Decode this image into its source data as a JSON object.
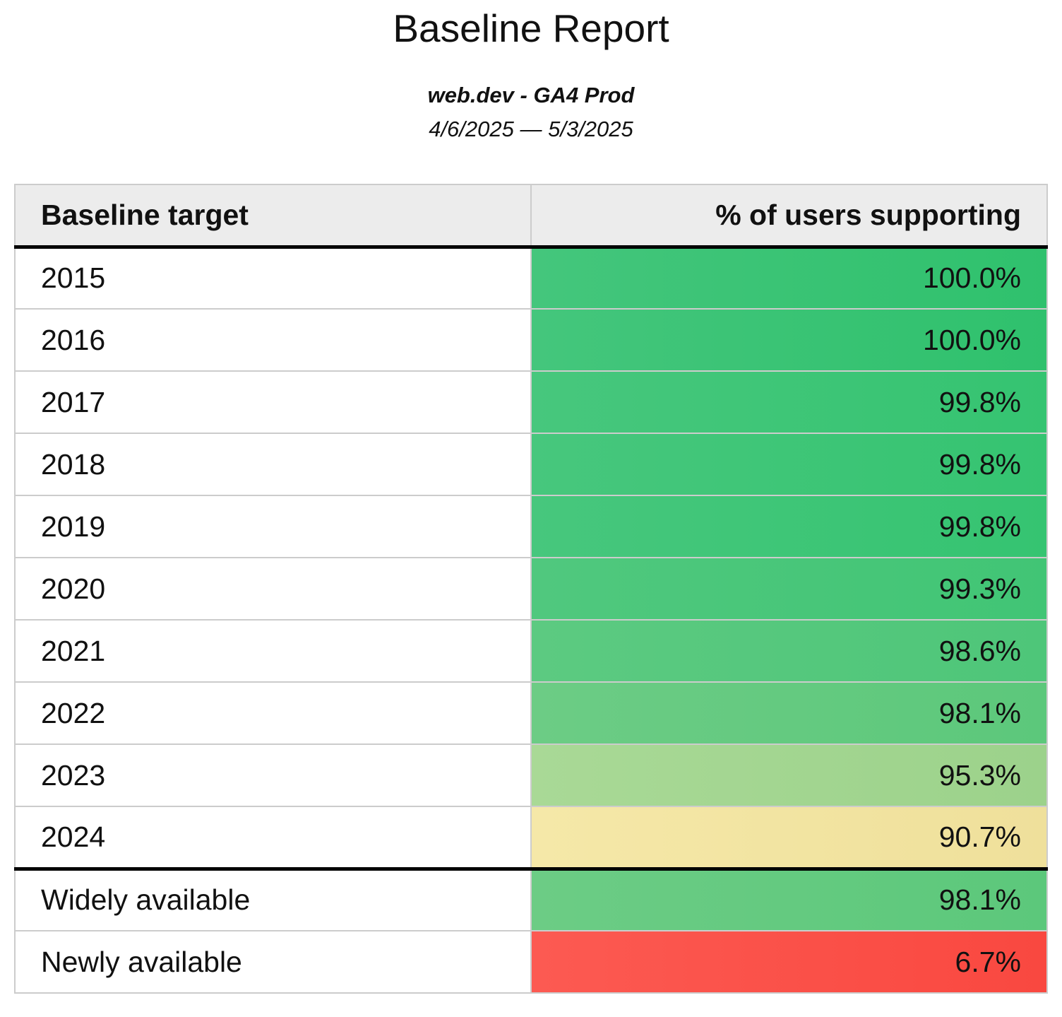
{
  "page": {
    "title": "Baseline Report",
    "subtitle": "web.dev - GA4 Prod",
    "date_range": "4/6/2025 — 5/3/2025"
  },
  "table": {
    "columns": [
      {
        "label": "Baseline target"
      },
      {
        "label": "% of users supporting"
      }
    ],
    "rows": [
      {
        "label": "2015",
        "value": "100.0%",
        "pct": 100.0,
        "color_start": "#44c67c",
        "color_end": "#2fc16d"
      },
      {
        "label": "2016",
        "value": "100.0%",
        "pct": 100.0,
        "color_start": "#44c67c",
        "color_end": "#2fc16d"
      },
      {
        "label": "2017",
        "value": "99.8%",
        "pct": 99.8,
        "color_start": "#47c77d",
        "color_end": "#35c471"
      },
      {
        "label": "2018",
        "value": "99.8%",
        "pct": 99.8,
        "color_start": "#47c77d",
        "color_end": "#35c471"
      },
      {
        "label": "2019",
        "value": "99.8%",
        "pct": 99.8,
        "color_start": "#47c77d",
        "color_end": "#35c471"
      },
      {
        "label": "2020",
        "value": "99.3%",
        "pct": 99.3,
        "color_start": "#50c87e",
        "color_end": "#41c575"
      },
      {
        "label": "2021",
        "value": "98.6%",
        "pct": 98.6,
        "color_start": "#5cca81",
        "color_end": "#4ec679"
      },
      {
        "label": "2022",
        "value": "98.1%",
        "pct": 98.1,
        "color_start": "#6ccc85",
        "color_end": "#5cc87b"
      },
      {
        "label": "2023",
        "value": "95.3%",
        "pct": 95.3,
        "color_start": "#a9d996",
        "color_end": "#9cd28b"
      },
      {
        "label": "2024",
        "value": "90.7%",
        "pct": 90.7,
        "color_start": "#f5e8a8",
        "color_end": "#efe09b"
      },
      {
        "label": "Widely available",
        "value": "98.1%",
        "pct": 98.1,
        "color_start": "#6ccc85",
        "color_end": "#5cc87b"
      },
      {
        "label": "Newly available",
        "value": "6.7%",
        "pct": 6.7,
        "color_start": "#fc5a52",
        "color_end": "#f94840"
      }
    ]
  },
  "chart_data": {
    "type": "table",
    "title": "Baseline Report",
    "subtitle": "web.dev - GA4 Prod",
    "date_range": "4/6/2025 — 5/3/2025",
    "columns": [
      "Baseline target",
      "% of users supporting"
    ],
    "categories": [
      "2015",
      "2016",
      "2017",
      "2018",
      "2019",
      "2020",
      "2021",
      "2022",
      "2023",
      "2024",
      "Widely available",
      "Newly available"
    ],
    "values": [
      100.0,
      100.0,
      99.8,
      99.8,
      99.8,
      99.3,
      98.6,
      98.1,
      95.3,
      90.7,
      98.1,
      6.7
    ]
  },
  "colors": {
    "header_bg": "#ececec",
    "grid_border": "#cccccc",
    "strong_border": "#000000",
    "text": "#111111",
    "good": "#2fc16d",
    "warn": "#f0e19d",
    "bad": "#f94840"
  }
}
